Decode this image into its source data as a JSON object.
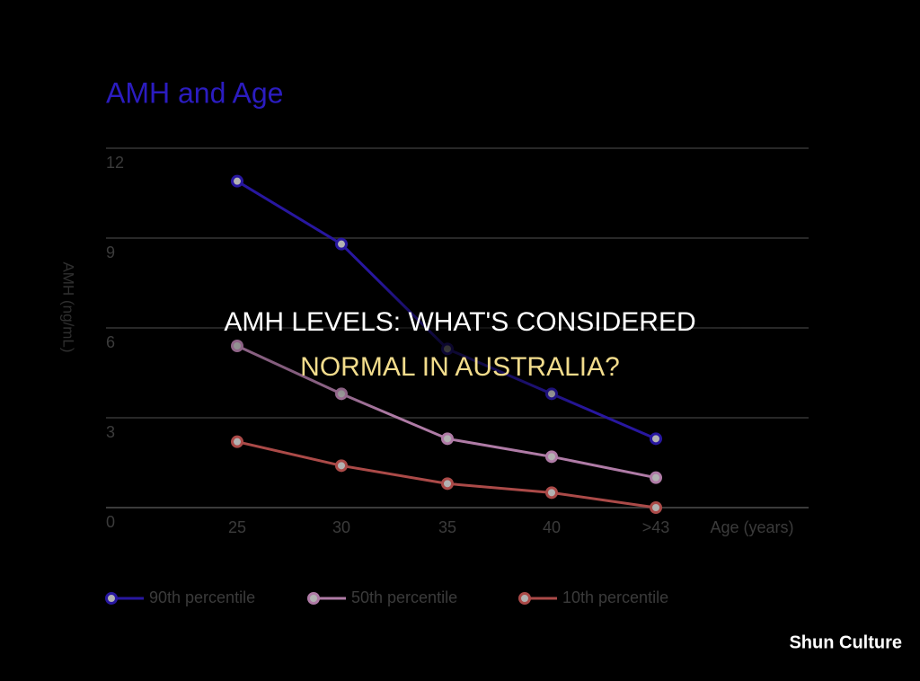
{
  "chart_data": {
    "type": "line",
    "title": "AMH and Age",
    "y_label": "AMH (ng/mL)",
    "x_label": "Age (years)",
    "categories": [
      "25",
      "30",
      "35",
      "40",
      ">43"
    ],
    "series": [
      {
        "name": "90th percentile",
        "color": "#3a22e6",
        "values": [
          10.9,
          8.8,
          5.3,
          3.8,
          2.3
        ]
      },
      {
        "name": "50th percentile",
        "color": "#fbb0ee",
        "values": [
          5.4,
          3.8,
          2.3,
          1.7,
          1.0
        ]
      },
      {
        "name": "10th percentile",
        "color": "#f56a68",
        "values": [
          2.2,
          1.4,
          0.8,
          0.5,
          0
        ]
      }
    ],
    "ylim": [
      0,
      12
    ],
    "yticks": [
      0,
      3,
      6,
      9,
      12
    ],
    "grid": true,
    "legend": "bottom"
  },
  "overlay_title": [
    "AMH LEVELS: WHAT'S CONSIDERED",
    "NORMAL IN AUSTRALIA?"
  ],
  "watermark": "Shun Culture"
}
